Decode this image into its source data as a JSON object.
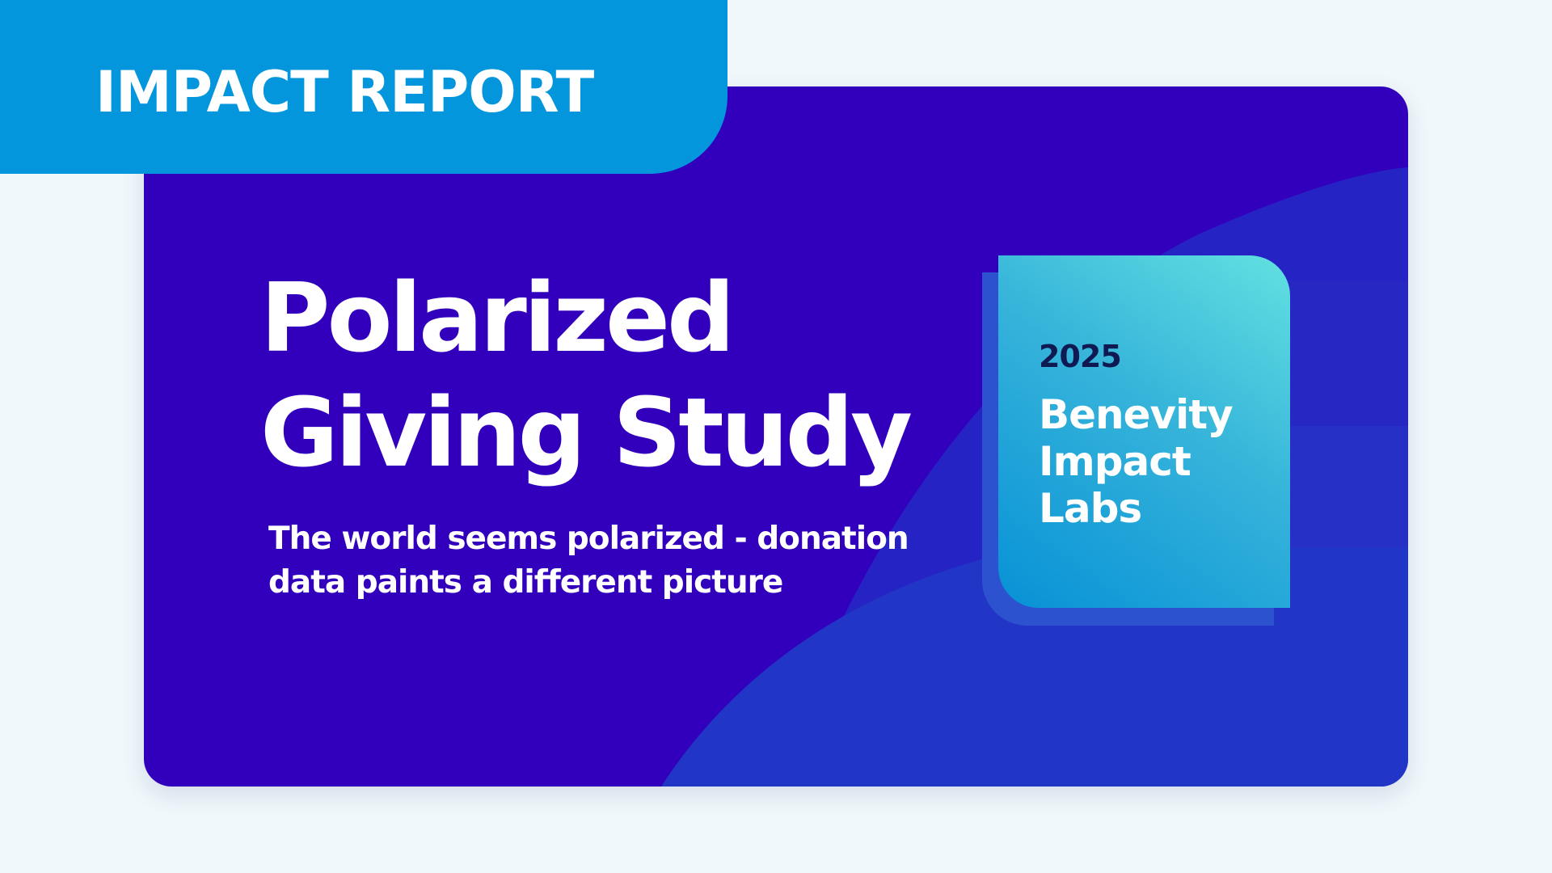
{
  "tab": {
    "label": "IMPACT REPORT"
  },
  "hero": {
    "title_lines": [
      "Polarized",
      "Giving Study"
    ],
    "subtitle_lines": [
      "The world seems polarized - donation",
      "data paints a different picture"
    ]
  },
  "badge": {
    "year": "2025",
    "org_lines": [
      "Benevity",
      "Impact",
      "Labs"
    ]
  },
  "colors": {
    "page_background": "#f0f8fc",
    "card_background": "#3200bd",
    "tab_background": "#0396dd",
    "badge_gradient_start": "#62e1e1",
    "badge_gradient_end": "#0791d6",
    "year_text": "#101a52"
  }
}
